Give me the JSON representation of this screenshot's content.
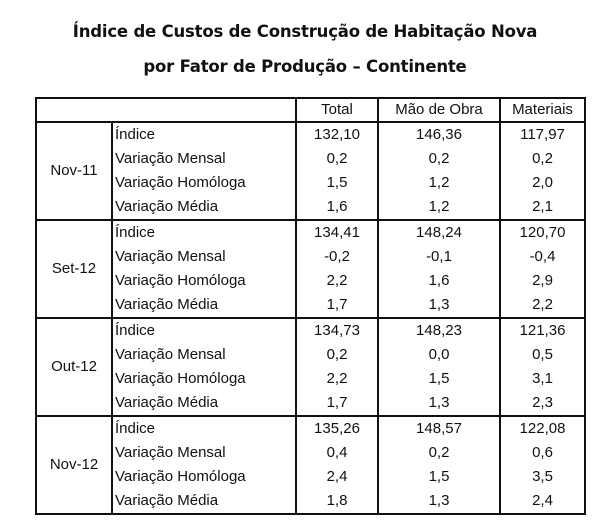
{
  "title": {
    "line1": "Índice de Custos de Construção de Habitação Nova",
    "line2": "por Fator de Produção – Continente"
  },
  "table": {
    "columns": [
      "",
      "",
      "Total",
      "Mão de Obra",
      "Materiais"
    ],
    "groups": [
      {
        "period": "Nov-11",
        "rows": [
          {
            "label": "Índice",
            "values": [
              "132,10",
              "146,36",
              "117,97"
            ]
          },
          {
            "label": "Variação Mensal",
            "values": [
              "0,2",
              "0,2",
              "0,2"
            ]
          },
          {
            "label": "Variação Homóloga",
            "values": [
              "1,5",
              "1,2",
              "2,0"
            ]
          },
          {
            "label": "Variação Média",
            "values": [
              "1,6",
              "1,2",
              "2,1"
            ]
          }
        ]
      },
      {
        "period": "Set-12",
        "rows": [
          {
            "label": "Índice",
            "values": [
              "134,41",
              "148,24",
              "120,70"
            ]
          },
          {
            "label": "Variação Mensal",
            "values": [
              "-0,2",
              "-0,1",
              "-0,4"
            ]
          },
          {
            "label": "Variação Homóloga",
            "values": [
              "2,2",
              "1,6",
              "2,9"
            ]
          },
          {
            "label": "Variação Média",
            "values": [
              "1,7",
              "1,3",
              "2,2"
            ]
          }
        ]
      },
      {
        "period": "Out-12",
        "rows": [
          {
            "label": "Índice",
            "values": [
              "134,73",
              "148,23",
              "121,36"
            ]
          },
          {
            "label": "Variação Mensal",
            "values": [
              "0,2",
              "0,0",
              "0,5"
            ]
          },
          {
            "label": "Variação Homóloga",
            "values": [
              "2,2",
              "1,5",
              "3,1"
            ]
          },
          {
            "label": "Variação Média",
            "values": [
              "1,7",
              "1,3",
              "2,3"
            ]
          }
        ]
      },
      {
        "period": "Nov-12",
        "rows": [
          {
            "label": "Índice",
            "values": [
              "135,26",
              "148,57",
              "122,08"
            ]
          },
          {
            "label": "Variação Mensal",
            "values": [
              "0,4",
              "0,2",
              "0,6"
            ]
          },
          {
            "label": "Variação Homóloga",
            "values": [
              "2,4",
              "1,5",
              "3,5"
            ]
          },
          {
            "label": "Variação Média",
            "values": [
              "1,8",
              "1,3",
              "2,4"
            ]
          }
        ]
      }
    ]
  }
}
